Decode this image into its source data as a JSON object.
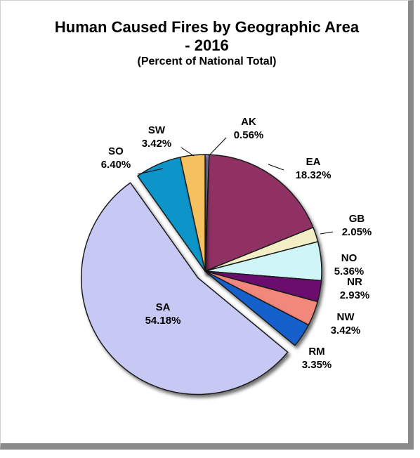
{
  "chart_data": {
    "type": "pie",
    "title_line1": "Human Caused Fires by Geographic   Area",
    "title_line2": "- 2016",
    "subtitle": "(Percent of National Total)",
    "slices": [
      {
        "label": "AK",
        "value": 0.56,
        "value_text": "0.56%",
        "color": "#9b96d6",
        "exploded": false
      },
      {
        "label": "EA",
        "value": 18.32,
        "value_text": "18.32%",
        "color": "#8f3363",
        "exploded": false
      },
      {
        "label": "GB",
        "value": 2.05,
        "value_text": "2.05%",
        "color": "#f4eec6",
        "exploded": false
      },
      {
        "label": "NO",
        "value": 5.36,
        "value_text": "5.36%",
        "color": "#cff5f7",
        "exploded": false
      },
      {
        "label": "NR",
        "value": 2.93,
        "value_text": "2.93%",
        "color": "#6a0b6e",
        "exploded": false
      },
      {
        "label": "NW",
        "value": 3.42,
        "value_text": "3.42%",
        "color": "#f2877c",
        "exploded": false
      },
      {
        "label": "RM",
        "value": 3.35,
        "value_text": "3.35%",
        "color": "#1560cc",
        "exploded": false
      },
      {
        "label": "SA",
        "value": 54.18,
        "value_text": "54.18%",
        "color": "#c8c8f4",
        "exploded": true
      },
      {
        "label": "SO",
        "value": 6.4,
        "value_text": "6.40%",
        "color": "#0b94c8",
        "exploded": false
      },
      {
        "label": "SW",
        "value": 3.42,
        "value_text": "3.42%",
        "color": "#f4c060",
        "exploded": false
      }
    ],
    "legend": "none"
  }
}
